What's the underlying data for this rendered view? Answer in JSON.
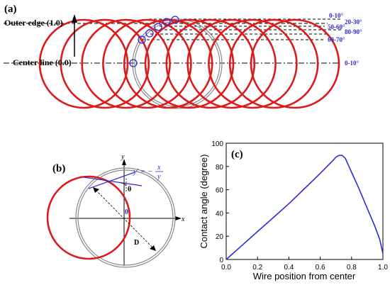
{
  "panel_a": {
    "label": "(a)",
    "outer_edge_label": "Outer edge (1.0)",
    "center_line_label": "Center line (0.0)",
    "angle_labels": [
      "0-10°",
      "20-30°",
      "50-60°",
      "80-90°",
      "60-70°",
      "0-10°"
    ]
  },
  "panel_b": {
    "label": "(b)",
    "y_axis": "y",
    "x_axis": "x",
    "origin": "0",
    "theta": "θ",
    "diameter": "D",
    "formula_lhs": "y' = −",
    "formula_num": "x",
    "formula_den": "y"
  },
  "panel_c": {
    "label": "(c)"
  },
  "colors": {
    "red": "#dd1a1a",
    "blue": "#2b2bd6",
    "gray": "#888888"
  },
  "chart_data": {
    "type": "line",
    "xlabel": "Wire position from center",
    "ylabel": "Contact angle (degree)",
    "xlim": [
      0,
      1.0
    ],
    "ylim": [
      0,
      100
    ],
    "xticks": [
      "0.0",
      "0.2",
      "0.4",
      "0.6",
      "0.8",
      "1.0"
    ],
    "yticks": [
      "0",
      "20",
      "40",
      "60",
      "80",
      "100"
    ],
    "x": [
      0,
      0.1,
      0.2,
      0.3,
      0.4,
      0.5,
      0.6,
      0.68,
      0.7,
      0.72,
      0.74,
      0.76,
      0.8,
      0.85,
      0.9,
      0.95,
      0.98,
      1.0
    ],
    "y": [
      0,
      12,
      24,
      36,
      48,
      61,
      74,
      85,
      88,
      89.5,
      89.5,
      87,
      75,
      60,
      44,
      28,
      17,
      5
    ]
  }
}
